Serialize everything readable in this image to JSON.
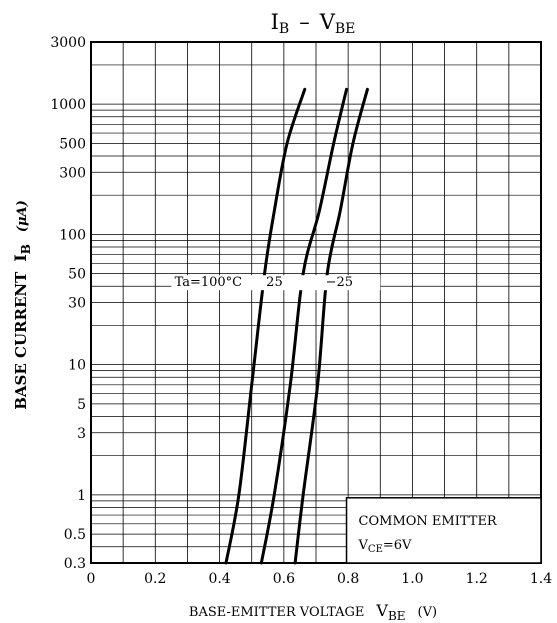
{
  "chart_data": {
    "type": "line",
    "title": {
      "main": "I",
      "main_sub": "B",
      "dash": "–",
      "second": "V",
      "second_sub": "BE"
    },
    "xlabel": {
      "text": "BASE-EMITTER VOLTAGE",
      "var": "V",
      "var_sub": "BE",
      "unit": "(V)"
    },
    "ylabel": {
      "text": "BASE CURRENT",
      "var": "I",
      "var_sub": "B",
      "unit": "(μA)"
    },
    "x_ticks": [
      0,
      0.2,
      0.4,
      0.6,
      0.8,
      1.0,
      1.2,
      1.4
    ],
    "x_tick_labels": [
      "0",
      "0.2",
      "0.4",
      "0.6",
      "0.8",
      "1.0",
      "1.2",
      "1.4"
    ],
    "y_ticks": [
      0.3,
      0.5,
      1,
      3,
      5,
      10,
      30,
      50,
      100,
      300,
      500,
      1000,
      3000
    ],
    "y_tick_labels": [
      "0.3",
      "0.5",
      "1",
      "3",
      "5",
      "10",
      "30",
      "50",
      "100",
      "300",
      "500",
      "1000",
      "3000"
    ],
    "xlim": [
      0,
      1.4
    ],
    "ylim": [
      0.3,
      3000
    ],
    "y_scale": "log",
    "grid": true,
    "series": [
      {
        "name": "Ta=100°C",
        "x": [
          0.42,
          0.46,
          0.5,
          0.54,
          0.57,
          0.61,
          0.665
        ],
        "y": [
          0.3,
          1,
          7,
          50,
          150,
          500,
          1300
        ]
      },
      {
        "name": "25",
        "x": [
          0.53,
          0.57,
          0.62,
          0.66,
          0.71,
          0.755,
          0.795
        ],
        "y": [
          0.3,
          1,
          7,
          50,
          150,
          500,
          1300
        ]
      },
      {
        "name": "−25",
        "x": [
          0.635,
          0.66,
          0.705,
          0.735,
          0.775,
          0.815,
          0.86
        ],
        "y": [
          0.3,
          1,
          7,
          50,
          150,
          500,
          1300
        ]
      }
    ],
    "annotation": {
      "line1": "COMMON EMITTER",
      "line2_var": "V",
      "line2_sub": "CE",
      "line2_val": "=6V"
    }
  }
}
